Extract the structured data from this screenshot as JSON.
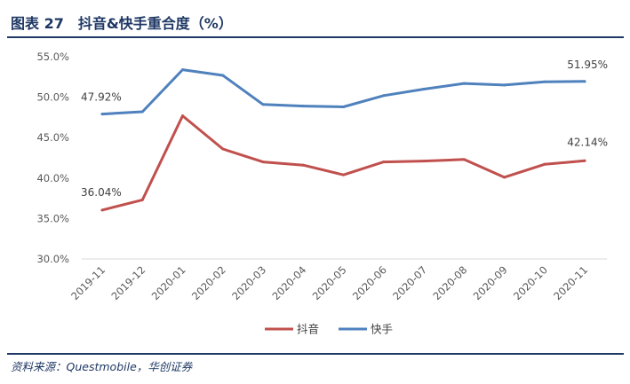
{
  "figure": {
    "title": "图表 27　抖音&快手重合度（%）",
    "source": "资料来源：Questmobile，华创证券"
  },
  "colors": {
    "douyin": "#c0504d",
    "kuaishou": "#4f81bd",
    "rule": "#1f3864"
  },
  "chart_data": {
    "type": "line",
    "categories": [
      "2019-11",
      "2019-12",
      "2020-01",
      "2020-02",
      "2020-03",
      "2020-04",
      "2020-05",
      "2020-06",
      "2020-07",
      "2020-08",
      "2020-09",
      "2020-10",
      "2020-11"
    ],
    "series": [
      {
        "name": "抖音",
        "values": [
          36.04,
          37.3,
          47.7,
          43.6,
          42.0,
          41.6,
          40.4,
          42.0,
          42.1,
          42.3,
          40.1,
          41.7,
          42.14
        ]
      },
      {
        "name": "快手",
        "values": [
          47.92,
          48.2,
          53.4,
          52.7,
          49.1,
          48.9,
          48.8,
          50.2,
          51.0,
          51.7,
          51.5,
          51.9,
          51.95
        ]
      }
    ],
    "ylim": [
      30,
      55
    ],
    "yticks": [
      "30.0%",
      "35.0%",
      "40.0%",
      "45.0%",
      "50.0%",
      "55.0%"
    ],
    "data_labels": [
      "36.04%",
      "47.92%",
      "42.14%",
      "51.95%"
    ],
    "grid": false,
    "legend_position": "bottom"
  }
}
